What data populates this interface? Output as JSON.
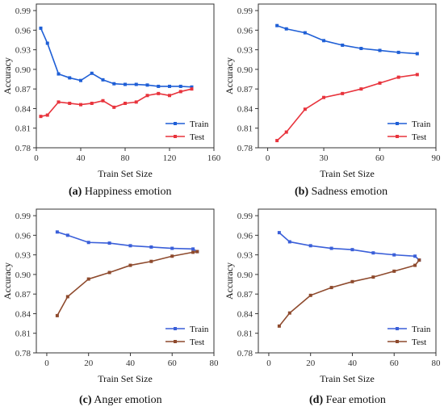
{
  "chart_data": [
    {
      "type": "line",
      "caption_letter": "(a)",
      "caption_text": "Happiness emotion",
      "xlabel": "Train Set Size",
      "ylabel": "Accuracy",
      "xlim": [
        0,
        160
      ],
      "ylim": [
        0.78,
        1.0
      ],
      "xticks": [
        0,
        40,
        80,
        120,
        160
      ],
      "yticks": [
        0.78,
        0.81,
        0.84,
        0.87,
        0.9,
        0.93,
        0.96,
        0.99
      ],
      "legend_position": "bottom-right",
      "grid": false,
      "series": [
        {
          "name": "Train",
          "color": "#1f5fd6",
          "x": [
            4,
            10,
            20,
            30,
            40,
            50,
            60,
            70,
            80,
            90,
            100,
            110,
            120,
            130,
            140
          ],
          "y": [
            0.963,
            0.94,
            0.893,
            0.887,
            0.883,
            0.894,
            0.884,
            0.878,
            0.877,
            0.877,
            0.876,
            0.874,
            0.874,
            0.874,
            0.873
          ]
        },
        {
          "name": "Test",
          "color": "#e8333c",
          "x": [
            4,
            10,
            20,
            30,
            40,
            50,
            60,
            70,
            80,
            90,
            100,
            110,
            120,
            130,
            140
          ],
          "y": [
            0.828,
            0.83,
            0.85,
            0.848,
            0.846,
            0.848,
            0.852,
            0.842,
            0.848,
            0.85,
            0.86,
            0.863,
            0.86,
            0.866,
            0.87
          ]
        }
      ]
    },
    {
      "type": "line",
      "caption_letter": "(b)",
      "caption_text": "Sadness emotion",
      "xlabel": "Train Set Size",
      "ylabel": "Accuracy",
      "xlim": [
        -5,
        90
      ],
      "ylim": [
        0.78,
        1.0
      ],
      "xticks": [
        0,
        30,
        60,
        90
      ],
      "yticks": [
        0.78,
        0.81,
        0.84,
        0.87,
        0.9,
        0.93,
        0.96,
        0.99
      ],
      "legend_position": "bottom-right",
      "grid": false,
      "series": [
        {
          "name": "Train",
          "color": "#1f5fd6",
          "x": [
            5,
            10,
            20,
            30,
            40,
            50,
            60,
            70,
            80
          ],
          "y": [
            0.967,
            0.962,
            0.956,
            0.944,
            0.937,
            0.932,
            0.929,
            0.926,
            0.924
          ]
        },
        {
          "name": "Test",
          "color": "#e8333c",
          "x": [
            5,
            10,
            20,
            30,
            40,
            50,
            60,
            70,
            80
          ],
          "y": [
            0.791,
            0.804,
            0.839,
            0.857,
            0.863,
            0.87,
            0.879,
            0.888,
            0.892
          ]
        }
      ]
    },
    {
      "type": "line",
      "caption_letter": "(c)",
      "caption_text": "Anger emotion",
      "xlabel": "Train Set Size",
      "ylabel": "Accuracy",
      "xlim": [
        -5,
        80
      ],
      "ylim": [
        0.78,
        1.0
      ],
      "xticks": [
        0,
        20,
        40,
        60,
        80
      ],
      "yticks": [
        0.78,
        0.81,
        0.84,
        0.87,
        0.9,
        0.93,
        0.96,
        0.99
      ],
      "legend_position": "bottom-right",
      "grid": false,
      "series": [
        {
          "name": "Train",
          "color": "#3a5fd9",
          "x": [
            5,
            10,
            20,
            30,
            40,
            50,
            60,
            70,
            72
          ],
          "y": [
            0.965,
            0.96,
            0.949,
            0.948,
            0.944,
            0.942,
            0.94,
            0.939,
            0.935
          ]
        },
        {
          "name": "Test",
          "color": "#8e4a2d",
          "x": [
            5,
            10,
            20,
            30,
            40,
            50,
            60,
            70,
            72
          ],
          "y": [
            0.837,
            0.866,
            0.893,
            0.903,
            0.914,
            0.92,
            0.928,
            0.934,
            0.935
          ]
        }
      ]
    },
    {
      "type": "line",
      "caption_letter": "(d)",
      "caption_text": "Fear emotion",
      "xlabel": "Train Set Size",
      "ylabel": "Accuracy",
      "xlim": [
        -5,
        80
      ],
      "ylim": [
        0.78,
        1.0
      ],
      "xticks": [
        0,
        20,
        40,
        60,
        80
      ],
      "yticks": [
        0.78,
        0.81,
        0.84,
        0.87,
        0.9,
        0.93,
        0.96,
        0.99
      ],
      "legend_position": "bottom-right",
      "grid": false,
      "series": [
        {
          "name": "Train",
          "color": "#3a5fd9",
          "x": [
            5,
            10,
            20,
            30,
            40,
            50,
            60,
            70,
            72
          ],
          "y": [
            0.964,
            0.95,
            0.944,
            0.94,
            0.938,
            0.933,
            0.93,
            0.928,
            0.922
          ]
        },
        {
          "name": "Test",
          "color": "#8e4a2d",
          "x": [
            5,
            10,
            20,
            30,
            40,
            50,
            60,
            70,
            72
          ],
          "y": [
            0.821,
            0.841,
            0.868,
            0.88,
            0.889,
            0.896,
            0.905,
            0.914,
            0.922
          ]
        }
      ]
    }
  ]
}
